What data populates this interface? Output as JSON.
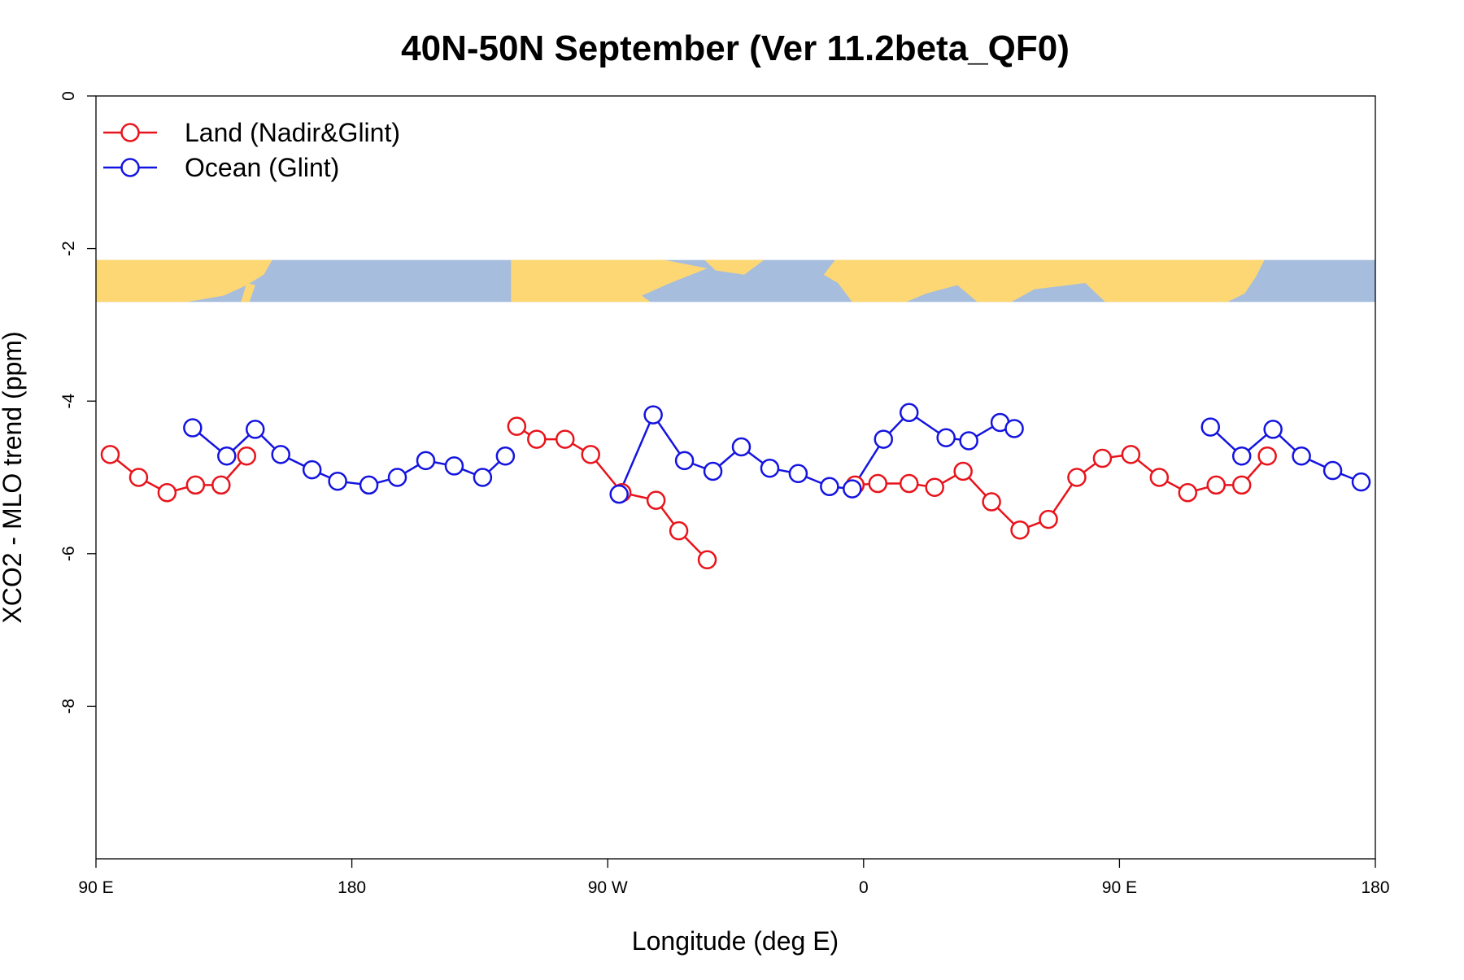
{
  "chart_data": {
    "type": "line",
    "title": "40N-50N September (Ver 11.2beta_QF0)",
    "xlabel": "Longitude (deg E)",
    "ylabel": "XCO2 - MLO trend (ppm)",
    "xlim": [
      90,
      540
    ],
    "ylim": [
      -10,
      0
    ],
    "x_ticks": [
      90,
      180,
      270,
      360,
      450,
      540
    ],
    "x_tick_labels": [
      "90 E",
      "180",
      "90 W",
      "0",
      "90 E",
      "180"
    ],
    "y_ticks": [
      0,
      -2,
      -4,
      -6,
      -8
    ],
    "y_tick_labels": [
      "0",
      "-2",
      "-4",
      "-6",
      "-8"
    ],
    "grid": false,
    "legend_position": "top-left",
    "map_strip": {
      "y_range": [
        -2.15,
        -2.7
      ],
      "land_color": "#FDD773",
      "ocean_color": "#A7BDDD"
    },
    "series": [
      {
        "name": "Land (Nadir&Glint)",
        "color": "#E8141B",
        "segments": [
          [
            [
              95,
              -4.7
            ],
            [
              105,
              -5.0
            ],
            [
              115,
              -5.2
            ],
            [
              125,
              -5.1
            ],
            [
              134,
              -5.1
            ],
            [
              143,
              -4.72
            ]
          ],
          [
            [
              238,
              -4.33
            ],
            [
              245,
              -4.5
            ],
            [
              255,
              -4.5
            ],
            [
              264,
              -4.7
            ],
            [
              275,
              -5.2
            ],
            [
              287,
              -5.3
            ],
            [
              295,
              -5.7
            ],
            [
              305,
              -6.08
            ]
          ],
          [
            [
              357,
              -5.1
            ],
            [
              365,
              -5.08
            ],
            [
              376,
              -5.08
            ],
            [
              385,
              -5.13
            ],
            [
              395,
              -4.92
            ],
            [
              405,
              -5.32
            ],
            [
              415,
              -5.69
            ],
            [
              425,
              -5.55
            ],
            [
              435,
              -5.0
            ],
            [
              444,
              -4.75
            ],
            [
              454,
              -4.7
            ],
            [
              464,
              -5.0
            ],
            [
              474,
              -5.2
            ],
            [
              484,
              -5.1
            ],
            [
              493,
              -5.1
            ],
            [
              502,
              -4.72
            ]
          ]
        ]
      },
      {
        "name": "Ocean (Glint)",
        "color": "#1414E0",
        "segments": [
          [
            [
              124,
              -4.35
            ],
            [
              136,
              -4.72
            ],
            [
              146,
              -4.37
            ],
            [
              155,
              -4.7
            ],
            [
              166,
              -4.9
            ],
            [
              175,
              -5.05
            ],
            [
              186,
              -5.1
            ],
            [
              196,
              -5.0
            ],
            [
              206,
              -4.78
            ],
            [
              216,
              -4.85
            ],
            [
              226,
              -5.0
            ],
            [
              234,
              -4.72
            ]
          ],
          [
            [
              274,
              -5.22
            ],
            [
              286,
              -4.18
            ],
            [
              297,
              -4.78
            ],
            [
              307,
              -4.92
            ],
            [
              317,
              -4.6
            ],
            [
              327,
              -4.88
            ],
            [
              337,
              -4.95
            ],
            [
              348,
              -5.12
            ],
            [
              356,
              -5.15
            ],
            [
              367,
              -4.5
            ],
            [
              376,
              -4.15
            ],
            [
              389,
              -4.48
            ],
            [
              397,
              -4.52
            ],
            [
              408,
              -4.28
            ],
            [
              413,
              -4.36
            ]
          ],
          [
            [
              482,
              -4.34
            ],
            [
              493,
              -4.72
            ],
            [
              504,
              -4.37
            ],
            [
              514,
              -4.72
            ],
            [
              525,
              -4.91
            ],
            [
              535,
              -5.06
            ]
          ]
        ]
      }
    ]
  }
}
